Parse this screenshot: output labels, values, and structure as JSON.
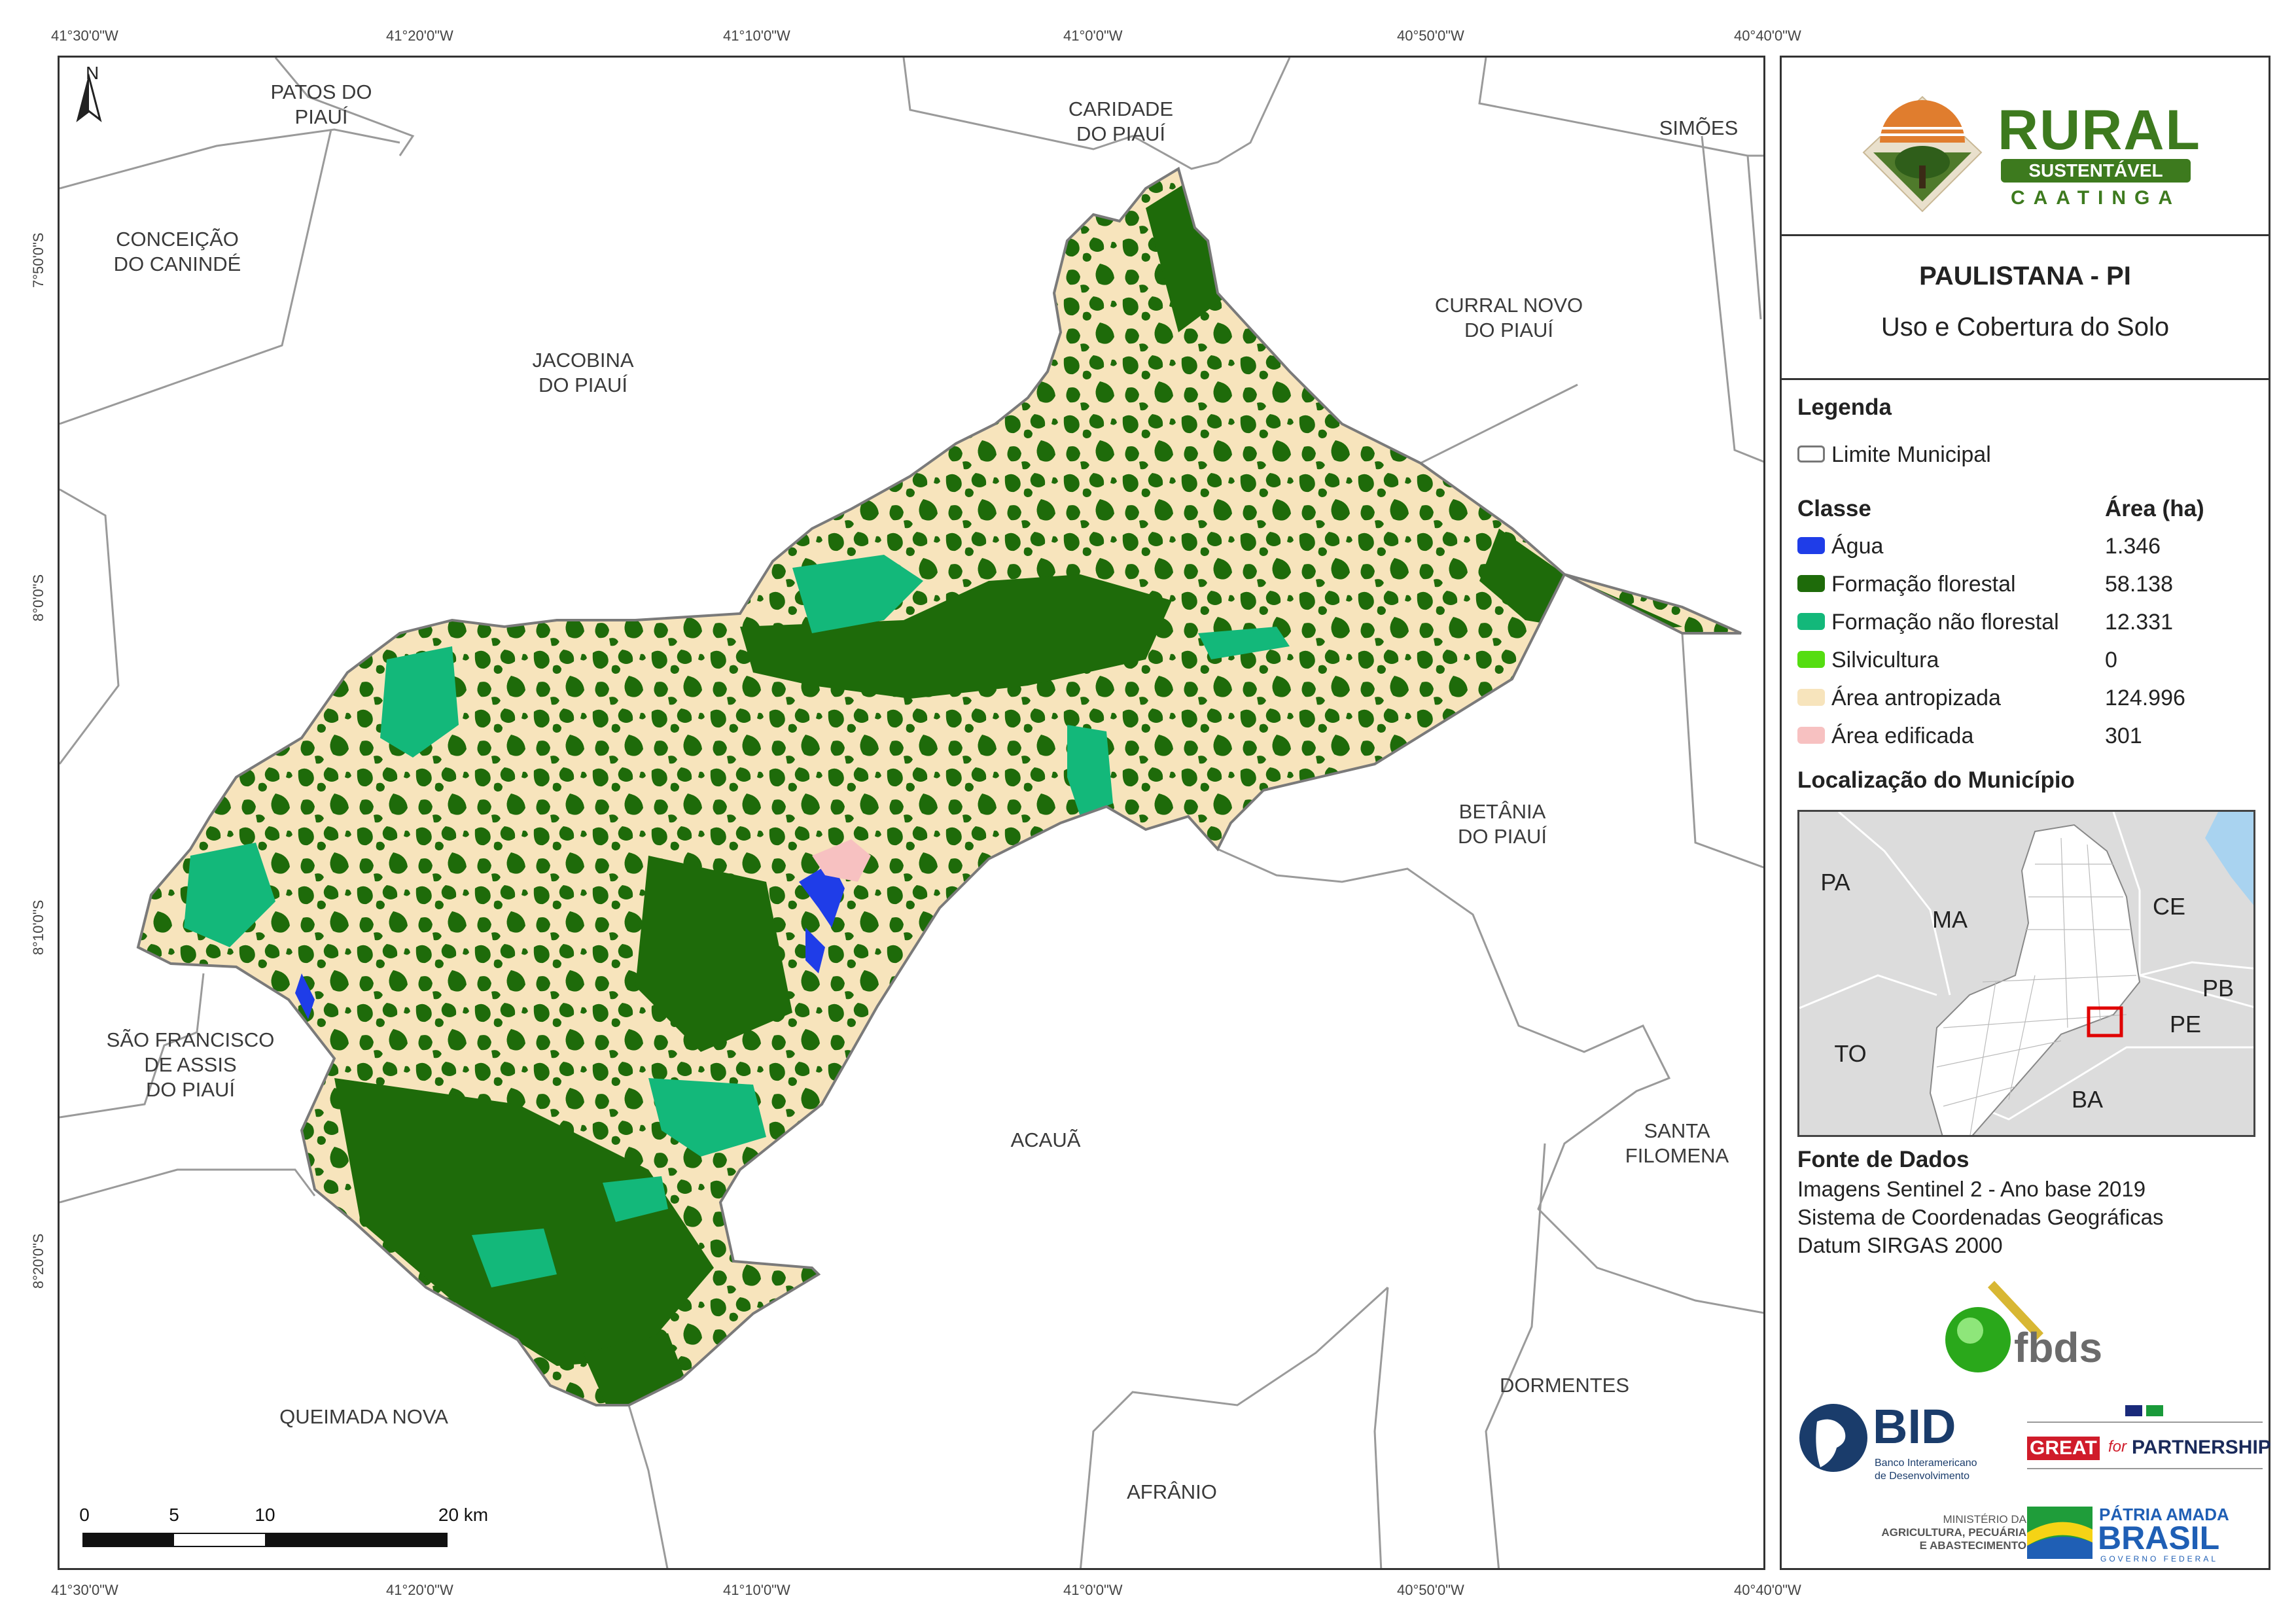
{
  "coordinates": {
    "top": [
      "41°30'0\"W",
      "41°20'0\"W",
      "41°10'0\"W",
      "41°0'0\"W",
      "40°50'0\"W",
      "40°40'0\"W"
    ],
    "bottom": [
      "41°30'0\"W",
      "41°20'0\"W",
      "41°10'0\"W",
      "41°0'0\"W",
      "40°50'0\"W",
      "40°40'0\"W"
    ],
    "left": [
      "7°50'0\"S",
      "8°0'0\"S",
      "8°10'0\"S",
      "8°20'0\"S"
    ]
  },
  "north_arrow": "N",
  "municipalities": [
    {
      "name": "PATOS DO\nPIAUÍ"
    },
    {
      "name": "CARIDADE\nDO PIAUÍ"
    },
    {
      "name": "SIMÕES"
    },
    {
      "name": "CONCEIÇÃO\nDO CANINDÉ"
    },
    {
      "name": "JACOBINA\nDO PIAUÍ"
    },
    {
      "name": "CURRAL NOVO\nDO PIAUÍ"
    },
    {
      "name": "BETÂNIA\nDO PIAUÍ"
    },
    {
      "name": "SÃO FRANCISCO\nDE ASSIS\nDO PIAUÍ"
    },
    {
      "name": "ACAUÃ"
    },
    {
      "name": "SANTA\nFILOMENA"
    },
    {
      "name": "QUEIMADA NOVA"
    },
    {
      "name": "DORMENTES"
    },
    {
      "name": "AFRÂNIO"
    }
  ],
  "scale_bar": {
    "labels": [
      "0",
      "5",
      "10",
      "20 km"
    ]
  },
  "logo": {
    "rural": "RURAL",
    "sustentavel": "SUSTENTÁVEL",
    "caatinga": "CAATINGA"
  },
  "title": "PAULISTANA - PI",
  "subtitle": "Uso e Cobertura do Solo",
  "legend": {
    "heading": "Legenda",
    "boundary_label": "Limite Municipal",
    "class_header": "Classe",
    "area_header": "Área (ha)",
    "classes": [
      {
        "label": "Água",
        "area": "1.346",
        "color": "#1f3de8"
      },
      {
        "label": "Formação florestal",
        "area": "58.138",
        "color": "#1e6b0a"
      },
      {
        "label": "Formação não florestal",
        "area": "12.331",
        "color": "#13b87a"
      },
      {
        "label": "Silvicultura",
        "area": "0",
        "color": "#55dd11"
      },
      {
        "label": "Área antropizada",
        "area": "124.996",
        "color": "#f7e4bc"
      },
      {
        "label": "Área edificada",
        "area": "301",
        "color": "#f7c1c1"
      }
    ]
  },
  "location": {
    "heading": "Localização do Município",
    "states": [
      "PA",
      "MA",
      "CE",
      "PB",
      "PE",
      "TO",
      "BA"
    ]
  },
  "source": {
    "heading": "Fonte de Dados",
    "lines": [
      "Imagens Sentinel 2 - Ano base 2019",
      "Sistema de Coordenadas Geográficas",
      "Datum SIRGAS 2000"
    ]
  },
  "partners": {
    "fbds": "fbds",
    "bid": "BID",
    "bid_sub1": "Banco Interamericano",
    "bid_sub2": "de Desenvolvimento",
    "great": "GREAT",
    "for_word": "for",
    "partnership": "PARTNERSHIP",
    "ministry1": "MINISTÉRIO DA",
    "ministry2": "AGRICULTURA, PECUÁRIA",
    "ministry3": "E ABASTECIMENTO",
    "patria": "PÁTRIA AMADA",
    "brasil": "BRASIL",
    "governo": "GOVERNO FEDERAL"
  }
}
